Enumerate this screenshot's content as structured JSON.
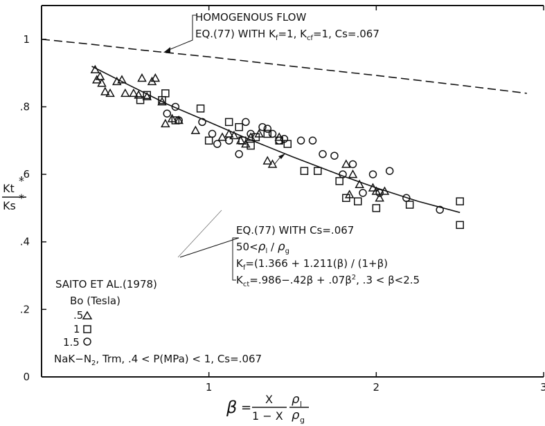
{
  "chart_data": {
    "type": "scatter",
    "xlim": [
      0,
      3
    ],
    "ylim": [
      0,
      1.1
    ],
    "x_ticks": [
      {
        "value": 1,
        "label": "1"
      },
      {
        "value": 2,
        "label": "2"
      },
      {
        "value": 3,
        "label": "3"
      }
    ],
    "y_ticks": [
      {
        "value": 0,
        "label": "0"
      },
      {
        "value": 0.2,
        "label": ".2"
      },
      {
        "value": 0.4,
        "label": ".4"
      },
      {
        "value": 0.6,
        "label": ".6"
      },
      {
        "value": 0.8,
        "label": ".8"
      },
      {
        "value": 1.0,
        "label": "1"
      }
    ],
    "xlabel": {
      "beta": "β",
      "eq": "=",
      "num": "X",
      "den": "1 − X",
      "rho_num": "ρ",
      "rho_num_sub": "l",
      "rho_den": "ρ",
      "rho_den_sub": "g"
    },
    "ylabel": {
      "num": "Kt",
      "den": "Ks",
      "sup": "*"
    },
    "grid": false,
    "annotations": {
      "homogenous": {
        "title": "HOMOGENOUS FLOW",
        "line2": "EQ.(77) WITH  K",
        "kf_sub": "f",
        "kf_val": "=1,  K",
        "kcf_sub": "cf",
        "kcf_val": "=1,   Cs=.067"
      },
      "model": {
        "l1": "EQ.(77) WITH  Cs=.067",
        "l2_a": "50<",
        "l2_rho1": "ρ",
        "l2_sub1": "l",
        "l2_slash": " / ",
        "l2_rho2": "ρ",
        "l2_sub2": "g",
        "l3_k": "K",
        "l3_sub": "f",
        "l3_rest": "=(1.366 + 1.211(β) / (1+β)",
        "l4_k": "K",
        "l4_sub": "ct",
        "l4_rest": "=.986−.42β + .07β",
        "l4_sup": "2",
        "l4_tail": ",   .3 < β<2.5"
      }
    },
    "legend": {
      "title": "SAITO ET AL.(1978)",
      "subtitle": "Bo  (Tesla)",
      "entries": [
        {
          "label": ".5",
          "marker": "triangle"
        },
        {
          "label": "1",
          "marker": "square"
        },
        {
          "label": "1.5",
          "marker": "circle"
        }
      ],
      "footer_a": "NaK−N",
      "footer_sub": "2",
      "footer_b": ", Trm,  .4 < P(MPa) < 1,  Cs=.067"
    },
    "lines": [
      {
        "style": "dashed",
        "points": [
          [
            0,
            1.0
          ],
          [
            0.3,
            0.985
          ],
          [
            0.6,
            0.968
          ],
          [
            1.0,
            0.948
          ],
          [
            1.5,
            0.92
          ],
          [
            2.0,
            0.893
          ],
          [
            2.5,
            0.864
          ],
          [
            2.9,
            0.84
          ]
        ]
      },
      {
        "style": "solid",
        "points": [
          [
            0.3,
            0.92
          ],
          [
            0.5,
            0.87
          ],
          [
            0.75,
            0.808
          ],
          [
            1.0,
            0.755
          ],
          [
            1.2,
            0.712
          ],
          [
            1.5,
            0.652
          ],
          [
            1.8,
            0.595
          ],
          [
            2.0,
            0.56
          ],
          [
            2.25,
            0.52
          ],
          [
            2.5,
            0.487
          ]
        ]
      }
    ],
    "series": [
      {
        "marker": "triangle",
        "points": [
          [
            0.32,
            0.91
          ],
          [
            0.33,
            0.88
          ],
          [
            0.35,
            0.89
          ],
          [
            0.36,
            0.87
          ],
          [
            0.38,
            0.845
          ],
          [
            0.41,
            0.84
          ],
          [
            0.45,
            0.875
          ],
          [
            0.48,
            0.88
          ],
          [
            0.5,
            0.84
          ],
          [
            0.55,
            0.84
          ],
          [
            0.58,
            0.835
          ],
          [
            0.6,
            0.885
          ],
          [
            0.63,
            0.83
          ],
          [
            0.66,
            0.875
          ],
          [
            0.68,
            0.885
          ],
          [
            0.72,
            0.815
          ],
          [
            0.74,
            0.75
          ],
          [
            0.78,
            0.765
          ],
          [
            0.82,
            0.76
          ],
          [
            0.92,
            0.73
          ],
          [
            1.08,
            0.71
          ],
          [
            1.12,
            0.72
          ],
          [
            1.15,
            0.715
          ],
          [
            1.19,
            0.7
          ],
          [
            1.22,
            0.69
          ],
          [
            1.25,
            0.71
          ],
          [
            1.3,
            0.72
          ],
          [
            1.35,
            0.64
          ],
          [
            1.38,
            0.63
          ],
          [
            1.42,
            0.71
          ],
          [
            1.82,
            0.63
          ],
          [
            1.86,
            0.6
          ],
          [
            1.9,
            0.57
          ],
          [
            1.98,
            0.56
          ],
          [
            2.0,
            0.55
          ],
          [
            2.02,
            0.53
          ],
          [
            2.05,
            0.55
          ],
          [
            1.84,
            0.54
          ]
        ]
      },
      {
        "marker": "square",
        "points": [
          [
            0.59,
            0.82
          ],
          [
            0.63,
            0.835
          ],
          [
            0.72,
            0.82
          ],
          [
            0.74,
            0.84
          ],
          [
            0.8,
            0.76
          ],
          [
            0.95,
            0.795
          ],
          [
            1.0,
            0.7
          ],
          [
            1.12,
            0.755
          ],
          [
            1.18,
            0.74
          ],
          [
            1.2,
            0.7
          ],
          [
            1.25,
            0.685
          ],
          [
            1.28,
            0.71
          ],
          [
            1.35,
            0.72
          ],
          [
            1.42,
            0.7
          ],
          [
            1.47,
            0.69
          ],
          [
            1.57,
            0.61
          ],
          [
            1.65,
            0.61
          ],
          [
            1.78,
            0.58
          ],
          [
            1.82,
            0.53
          ],
          [
            1.89,
            0.52
          ],
          [
            2.0,
            0.5
          ],
          [
            2.2,
            0.51
          ],
          [
            2.5,
            0.45
          ],
          [
            2.5,
            0.52
          ]
        ]
      },
      {
        "marker": "circle",
        "points": [
          [
            0.75,
            0.78
          ],
          [
            0.8,
            0.8
          ],
          [
            0.82,
            0.76
          ],
          [
            0.96,
            0.755
          ],
          [
            1.02,
            0.72
          ],
          [
            1.05,
            0.69
          ],
          [
            1.12,
            0.7
          ],
          [
            1.18,
            0.66
          ],
          [
            1.22,
            0.755
          ],
          [
            1.25,
            0.72
          ],
          [
            1.32,
            0.74
          ],
          [
            1.35,
            0.735
          ],
          [
            1.38,
            0.72
          ],
          [
            1.42,
            0.7
          ],
          [
            1.45,
            0.705
          ],
          [
            1.55,
            0.7
          ],
          [
            1.62,
            0.7
          ],
          [
            1.68,
            0.66
          ],
          [
            1.75,
            0.655
          ],
          [
            1.8,
            0.6
          ],
          [
            1.86,
            0.63
          ],
          [
            1.92,
            0.545
          ],
          [
            1.98,
            0.6
          ],
          [
            2.02,
            0.545
          ],
          [
            2.08,
            0.61
          ],
          [
            2.18,
            0.53
          ],
          [
            2.38,
            0.495
          ]
        ]
      }
    ]
  }
}
